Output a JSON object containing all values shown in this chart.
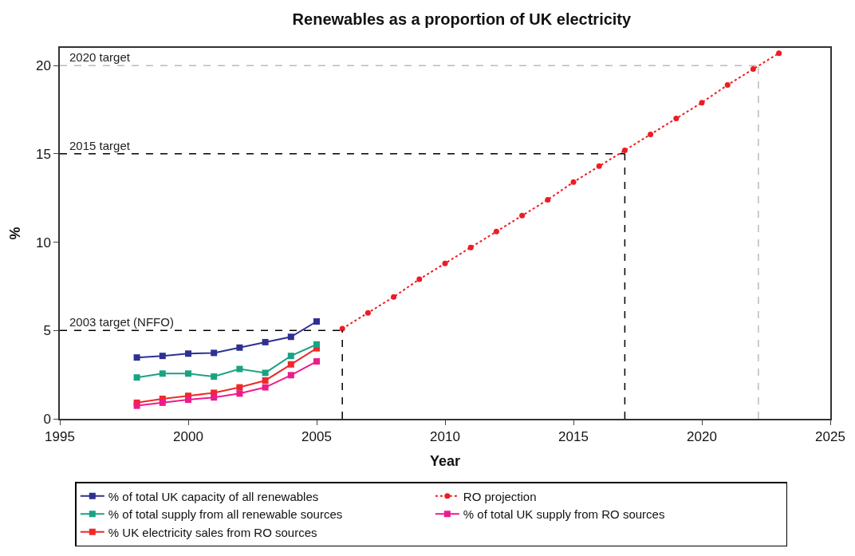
{
  "chart_data": {
    "type": "line",
    "title": "Renewables as a proportion of UK electricity",
    "xlabel": "Year",
    "ylabel": "%",
    "xlim": [
      1995,
      2025
    ],
    "xticks": [
      1995,
      2000,
      2005,
      2010,
      2015,
      2020,
      2025
    ],
    "ylim": [
      0,
      21
    ],
    "yticks": [
      0,
      5,
      10,
      15,
      20
    ],
    "legend": "bottom",
    "marker": "square",
    "line_style": "solid",
    "series": [
      {
        "name": "% of total UK capacity of all renewables",
        "color": "#2e3192",
        "x": [
          1998,
          1999,
          2000,
          2001,
          2002,
          2003,
          2004,
          2005
        ],
        "values": [
          3.47,
          3.56,
          3.69,
          3.73,
          4.03,
          4.34,
          4.64,
          5.51
        ]
      },
      {
        "name": "RO projection",
        "color": "#ed1c24",
        "marker": "circle",
        "line_style": "dotted",
        "x": [
          2006,
          2007,
          2008,
          2009,
          2010,
          2011,
          2012,
          2013,
          2014,
          2015,
          2016,
          2017,
          2018,
          2019,
          2020,
          2021,
          2022,
          2023
        ],
        "values": [
          5.1,
          6.0,
          6.9,
          7.9,
          8.8,
          9.7,
          10.6,
          11.5,
          12.4,
          13.4,
          14.3,
          15.2,
          16.1,
          17.0,
          17.9,
          18.9,
          19.8,
          20.7
        ]
      },
      {
        "name": "% of total supply from all renewable sources",
        "color": "#1aa383",
        "x": [
          1998,
          1999,
          2000,
          2001,
          2002,
          2003,
          2004,
          2005
        ],
        "values": [
          2.34,
          2.56,
          2.56,
          2.39,
          2.82,
          2.6,
          3.56,
          4.21
        ]
      },
      {
        "name": "% of total UK supply from RO sources",
        "color": "#ec1c8c",
        "x": [
          1998,
          1999,
          2000,
          2001,
          2002,
          2003,
          2004,
          2005
        ],
        "values": [
          0.74,
          0.91,
          1.08,
          1.21,
          1.43,
          1.78,
          2.47,
          3.25
        ]
      },
      {
        "name": "% UK electricity sales from RO sources",
        "color": "#ed2a2a",
        "x": [
          1998,
          1999,
          2000,
          2001,
          2002,
          2003,
          2004,
          2005
        ],
        "values": [
          0.91,
          1.13,
          1.3,
          1.47,
          1.78,
          2.17,
          3.08,
          3.99
        ]
      }
    ],
    "ref_lines": [
      {
        "axis": "y",
        "value": 5,
        "label": "2003 target (NFFO)",
        "color": "#000000",
        "line_style": "dashed"
      },
      {
        "axis": "x",
        "value": 2006,
        "color": "#000000",
        "line_style": "dashed"
      },
      {
        "axis": "y",
        "value": 15,
        "label": "2015 target",
        "color": "#000000",
        "line_style": "dashed"
      },
      {
        "axis": "x",
        "value": 2017,
        "color": "#000000",
        "line_style": "dashed"
      },
      {
        "axis": "y",
        "value": 20,
        "label": "2020 target",
        "color": "#bbbbbb",
        "line_style": "dashed"
      },
      {
        "axis": "x",
        "value": 2022.2,
        "color": "#bbbbbb",
        "line_style": "dashed"
      }
    ]
  }
}
